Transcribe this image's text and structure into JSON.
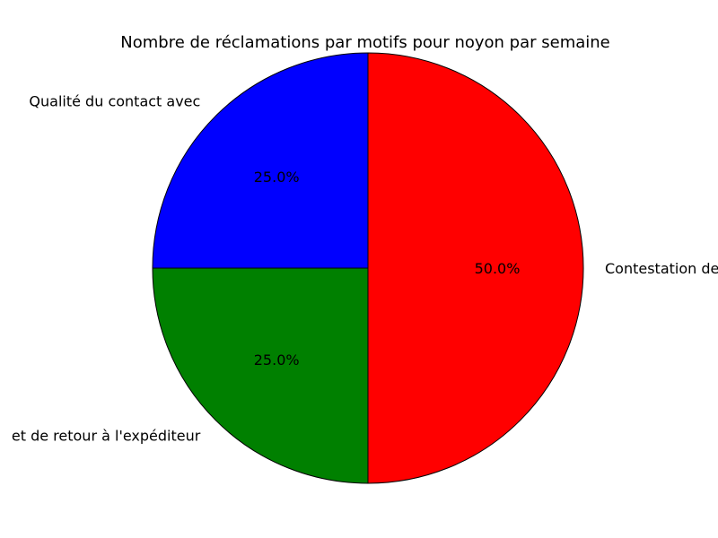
{
  "chart_data": {
    "type": "pie",
    "title": "Nombre de réclamations par motifs pour noyon par semaine",
    "slices": [
      {
        "label": "Qualité du contact avec",
        "value": 25.0,
        "pct_label": "25.0%",
        "color": "#0000ff"
      },
      {
        "label": "et de retour à l'expéditeur",
        "value": 25.0,
        "pct_label": "25.0%",
        "color": "#008000"
      },
      {
        "label": "Contestation de l'information de distribution",
        "value": 50.0,
        "pct_label": "50.0%",
        "color": "#ff0000"
      }
    ],
    "start_angle_deg": 90,
    "direction": "counterclockwise",
    "edge_color": "#000000"
  }
}
